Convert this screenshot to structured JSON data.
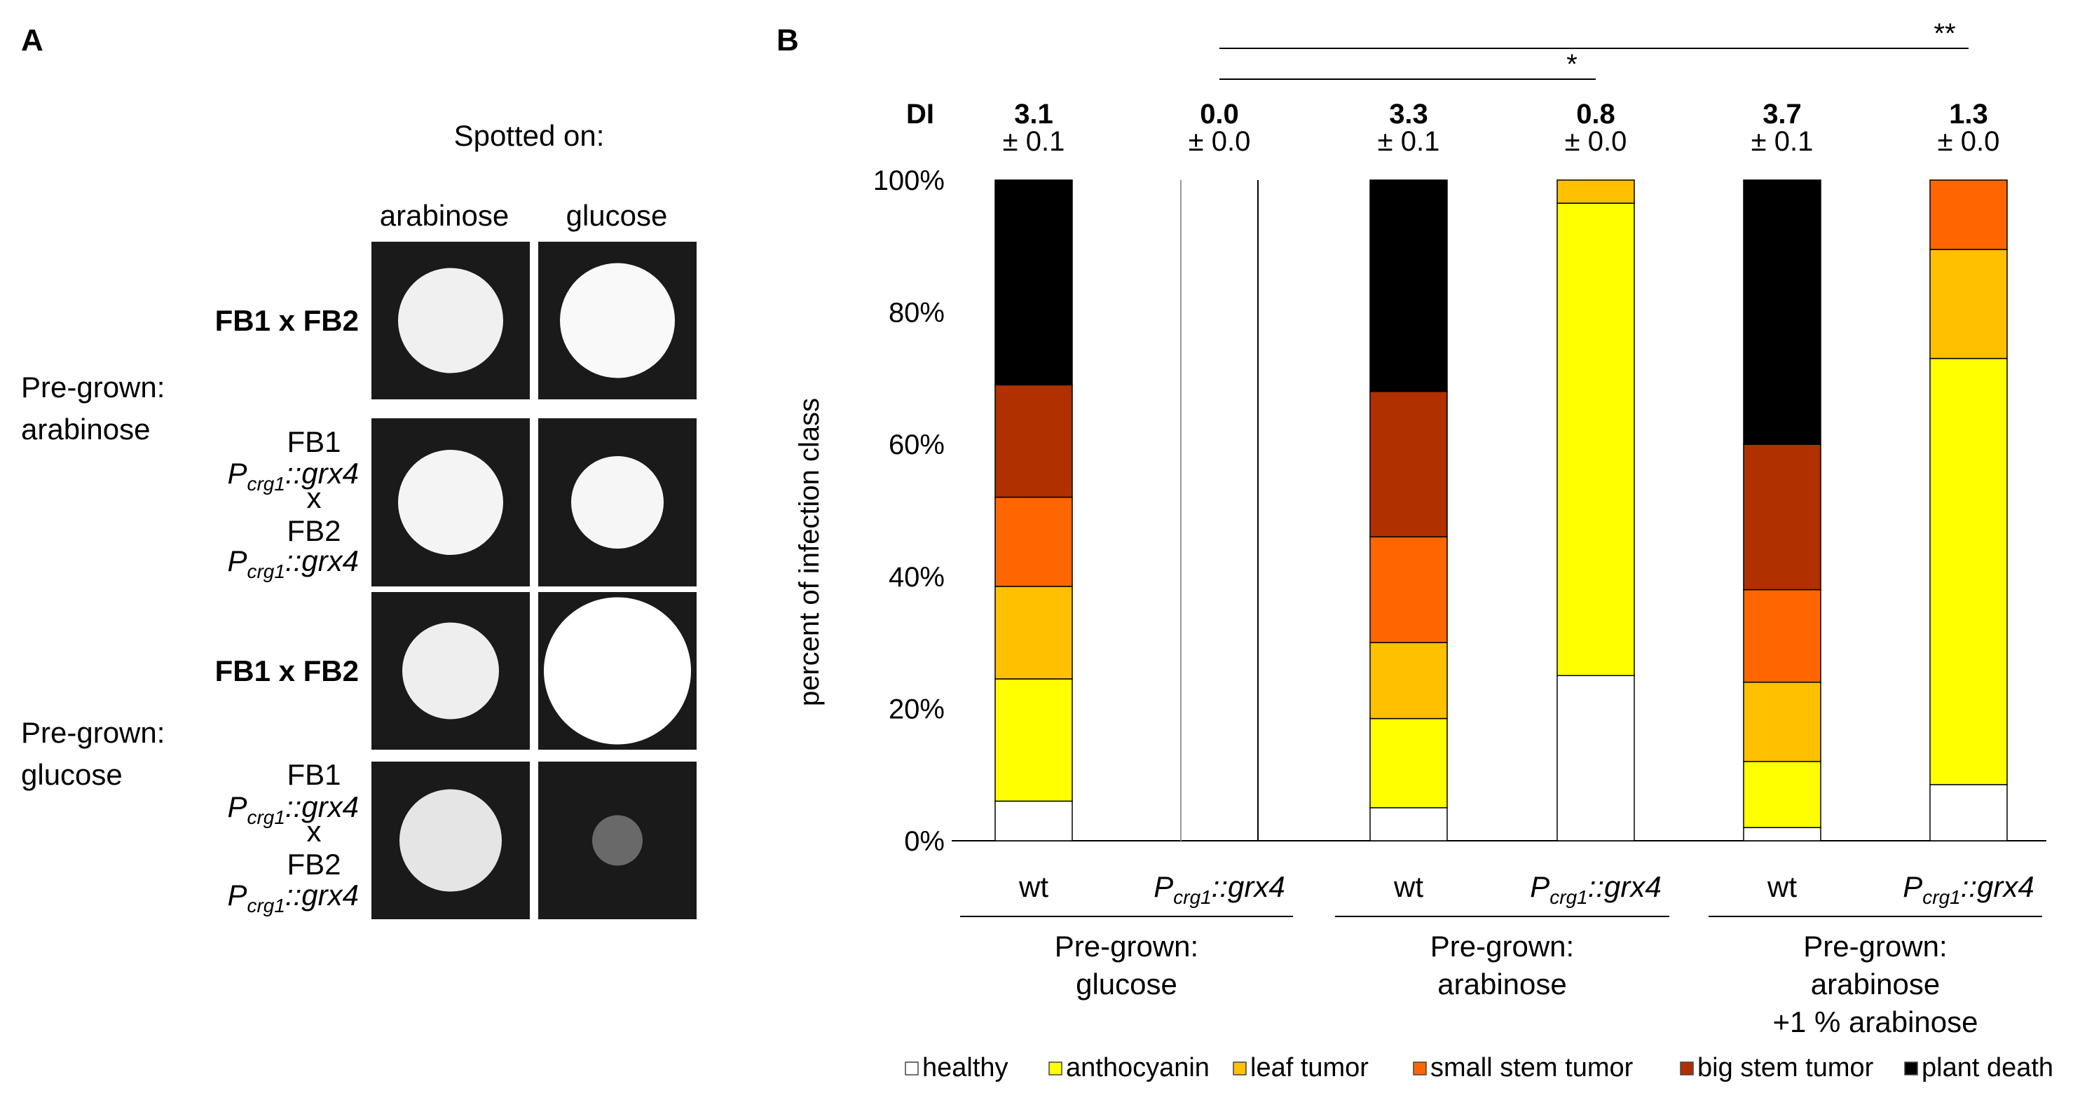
{
  "panelA": {
    "letter": "A",
    "spotted_on": "Spotted on:",
    "col_labels": [
      "arabinose",
      "glucose"
    ],
    "group_labels": [
      [
        "Pre-grown:",
        "arabinose"
      ],
      [
        "Pre-grown:",
        "glucose"
      ]
    ],
    "row_labels": {
      "cross_wt": "FB1 x FB2",
      "fb1": "FB1",
      "p": "P",
      "crg1": "crg1",
      "grx4": "::grx4",
      "x": "x",
      "fb2": "FB2"
    },
    "colony_brightness": [
      [
        0.93,
        0.97
      ],
      [
        0.95,
        0.96
      ],
      [
        0.92,
        1.0
      ],
      [
        0.88,
        0.3
      ]
    ],
    "colors": {
      "background": "#1a1a1a"
    }
  },
  "chart_data": {
    "type": "bar",
    "stacked": true,
    "letter": "B",
    "ylabel": "percent of infection class",
    "yticks": [
      "0%",
      "20%",
      "40%",
      "60%",
      "80%",
      "100%"
    ],
    "ylim": [
      0,
      100
    ],
    "categories": [
      "wt",
      "Pcrg1::grx4",
      "wt",
      "Pcrg1::grx4",
      "wt",
      "Pcrg1::grx4"
    ],
    "category_labels": [
      {
        "plain": "wt"
      },
      {
        "p": "P",
        "sub": "crg1",
        "rest": "::grx4"
      },
      {
        "plain": "wt"
      },
      {
        "p": "P",
        "sub": "crg1",
        "rest": "::grx4"
      },
      {
        "plain": "wt"
      },
      {
        "p": "P",
        "sub": "crg1",
        "rest": "::grx4"
      }
    ],
    "groups": [
      {
        "lines": [
          "Pre-grown:",
          "glucose"
        ],
        "members": [
          0,
          1
        ]
      },
      {
        "lines": [
          "Pre-grown:",
          "arabinose"
        ],
        "members": [
          2,
          3
        ]
      },
      {
        "lines": [
          "Pre-grown:",
          "arabinose",
          "+1 % arabinose"
        ],
        "members": [
          4,
          5
        ]
      }
    ],
    "di_label": "DI",
    "di_values": [
      "3.1",
      "0.0",
      "3.3",
      "0.8",
      "3.7",
      "1.3"
    ],
    "di_errors": [
      "± 0.1",
      "± 0.0",
      "± 0.1",
      "± 0.0",
      "± 0.1",
      "± 0.0"
    ],
    "significance": [
      {
        "label": "*",
        "from": 1,
        "to": 3
      },
      {
        "label": "**",
        "from": 1,
        "to": 5
      }
    ],
    "series": [
      {
        "name": "healthy",
        "color": "#ffffff",
        "values": [
          6,
          0,
          5,
          25,
          2,
          8.5
        ]
      },
      {
        "name": "anthocyanin",
        "color": "#ffff00",
        "values": [
          18.5,
          0,
          13.5,
          71.5,
          10,
          64.5
        ]
      },
      {
        "name": "leaf tumor",
        "color": "#ffc000",
        "values": [
          14,
          0,
          11.5,
          3.5,
          12,
          16.5
        ]
      },
      {
        "name": "small stem tumor",
        "color": "#ff6600",
        "values": [
          13.5,
          0,
          16,
          0,
          14,
          10.5
        ]
      },
      {
        "name": "big stem tumor",
        "color": "#b03000",
        "values": [
          17,
          0,
          22,
          0,
          22,
          0
        ]
      },
      {
        "name": "plant death",
        "color": "#000000",
        "values": [
          31,
          0,
          32,
          0,
          40,
          0
        ]
      }
    ]
  }
}
